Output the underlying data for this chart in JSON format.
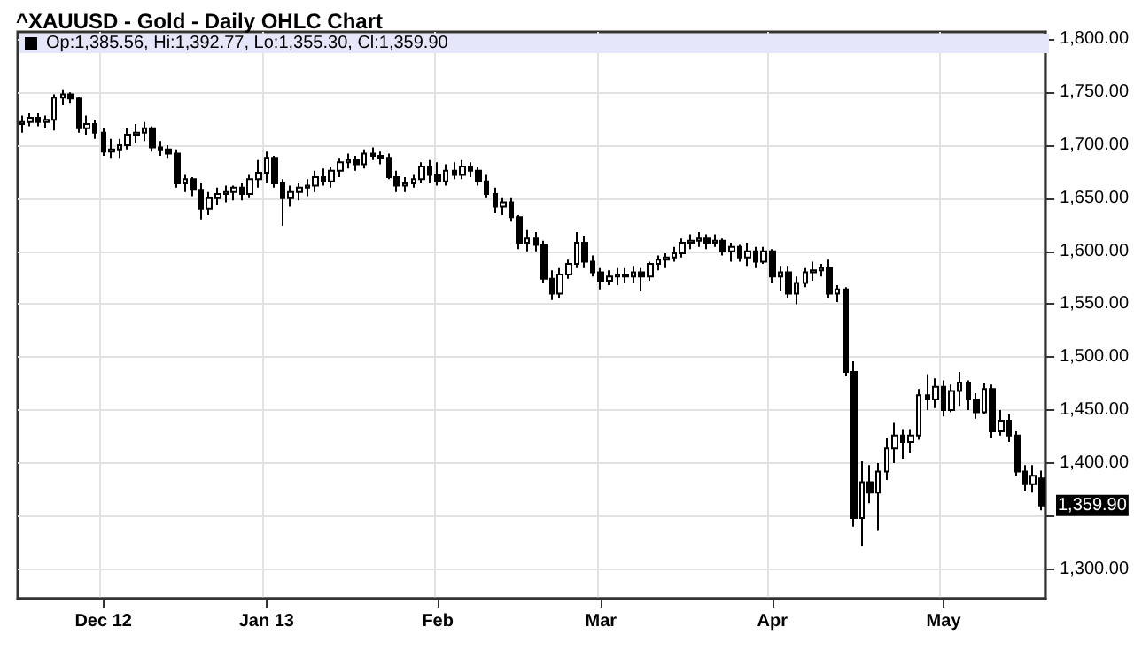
{
  "chart_data": {
    "type": "candlestick",
    "title": "^XAUUSD - Gold - Daily OHLC Chart",
    "color": "#000000",
    "grid": true,
    "annotations": [
      "Op:1,385.56, Hi:1,392.77, Lo:1,355.30, Cl:1,359.90",
      "1,359.90"
    ],
    "ylim": [
      1272,
      1807
    ],
    "yticks": [
      {
        "value": 1300,
        "label": "1,300.00"
      },
      {
        "value": 1350,
        "label": null
      },
      {
        "value": 1400,
        "label": "1,400.00"
      },
      {
        "value": 1450,
        "label": "1,450.00"
      },
      {
        "value": 1500,
        "label": "1,500.00"
      },
      {
        "value": 1550,
        "label": "1,550.00"
      },
      {
        "value": 1600,
        "label": "1,600.00"
      },
      {
        "value": 1650,
        "label": "1,650.00"
      },
      {
        "value": 1700,
        "label": "1,700.00"
      },
      {
        "value": 1750,
        "label": "1,750.00"
      },
      {
        "value": 1800,
        "label": "1,800.00"
      }
    ],
    "categories": [
      null,
      null,
      null,
      null,
      null,
      null,
      null,
      null,
      null,
      null,
      "Dec 12",
      null,
      null,
      null,
      null,
      null,
      null,
      null,
      null,
      null,
      null,
      null,
      null,
      null,
      null,
      null,
      null,
      null,
      null,
      null,
      "Jan 13",
      null,
      null,
      null,
      null,
      null,
      null,
      null,
      null,
      null,
      null,
      null,
      null,
      null,
      null,
      null,
      null,
      null,
      null,
      null,
      null,
      "Feb",
      null,
      null,
      null,
      null,
      null,
      null,
      null,
      null,
      null,
      null,
      null,
      null,
      null,
      null,
      null,
      null,
      null,
      null,
      null,
      "Mar",
      null,
      null,
      null,
      null,
      null,
      null,
      null,
      null,
      null,
      null,
      null,
      null,
      null,
      null,
      null,
      null,
      null,
      null,
      null,
      null,
      "Apr",
      null,
      null,
      null,
      null,
      null,
      null,
      null,
      null,
      null,
      null,
      null,
      null,
      null,
      null,
      null,
      null,
      null,
      null,
      null,
      null,
      "May",
      null,
      null,
      null,
      null,
      null,
      null,
      null,
      null,
      null,
      null,
      null,
      null
    ],
    "ohlc": [
      [
        1720,
        1728,
        1712,
        1722
      ],
      [
        1722,
        1730,
        1718,
        1726
      ],
      [
        1726,
        1730,
        1718,
        1722
      ],
      [
        1722,
        1728,
        1716,
        1724
      ],
      [
        1724,
        1748,
        1714,
        1745
      ],
      [
        1745,
        1752,
        1738,
        1748
      ],
      [
        1748,
        1750,
        1740,
        1744
      ],
      [
        1744,
        1746,
        1712,
        1716
      ],
      [
        1716,
        1728,
        1710,
        1720
      ],
      [
        1720,
        1724,
        1706,
        1712
      ],
      [
        1712,
        1716,
        1690,
        1694
      ],
      [
        1694,
        1706,
        1688,
        1696
      ],
      [
        1696,
        1706,
        1688,
        1700
      ],
      [
        1700,
        1716,
        1696,
        1710
      ],
      [
        1710,
        1720,
        1702,
        1712
      ],
      [
        1712,
        1722,
        1704,
        1716
      ],
      [
        1716,
        1718,
        1694,
        1698
      ],
      [
        1698,
        1704,
        1690,
        1696
      ],
      [
        1696,
        1700,
        1688,
        1692
      ],
      [
        1692,
        1696,
        1660,
        1664
      ],
      [
        1664,
        1672,
        1656,
        1668
      ],
      [
        1668,
        1670,
        1652,
        1658
      ],
      [
        1658,
        1664,
        1630,
        1640
      ],
      [
        1640,
        1656,
        1634,
        1650
      ],
      [
        1650,
        1660,
        1644,
        1654
      ],
      [
        1654,
        1662,
        1646,
        1656
      ],
      [
        1656,
        1662,
        1648,
        1660
      ],
      [
        1660,
        1664,
        1648,
        1654
      ],
      [
        1654,
        1672,
        1650,
        1668
      ],
      [
        1668,
        1686,
        1660,
        1674
      ],
      [
        1674,
        1694,
        1664,
        1688
      ],
      [
        1688,
        1690,
        1660,
        1664
      ],
      [
        1664,
        1668,
        1624,
        1650
      ],
      [
        1650,
        1662,
        1642,
        1656
      ],
      [
        1656,
        1664,
        1648,
        1660
      ],
      [
        1660,
        1668,
        1652,
        1662
      ],
      [
        1662,
        1676,
        1656,
        1670
      ],
      [
        1670,
        1678,
        1662,
        1666
      ],
      [
        1666,
        1680,
        1660,
        1676
      ],
      [
        1676,
        1688,
        1670,
        1684
      ],
      [
        1684,
        1692,
        1678,
        1686
      ],
      [
        1686,
        1690,
        1676,
        1682
      ],
      [
        1682,
        1696,
        1678,
        1692
      ],
      [
        1692,
        1698,
        1686,
        1690
      ],
      [
        1690,
        1694,
        1682,
        1688
      ],
      [
        1688,
        1692,
        1668,
        1670
      ],
      [
        1670,
        1676,
        1656,
        1662
      ],
      [
        1662,
        1670,
        1656,
        1664
      ],
      [
        1664,
        1672,
        1660,
        1668
      ],
      [
        1668,
        1684,
        1664,
        1680
      ],
      [
        1680,
        1686,
        1664,
        1672
      ],
      [
        1672,
        1684,
        1662,
        1666
      ],
      [
        1666,
        1682,
        1662,
        1676
      ],
      [
        1676,
        1684,
        1668,
        1672
      ],
      [
        1672,
        1686,
        1668,
        1680
      ],
      [
        1680,
        1684,
        1670,
        1676
      ],
      [
        1676,
        1680,
        1662,
        1666
      ],
      [
        1666,
        1672,
        1650,
        1654
      ],
      [
        1654,
        1660,
        1636,
        1642
      ],
      [
        1642,
        1650,
        1634,
        1646
      ],
      [
        1646,
        1650,
        1628,
        1632
      ],
      [
        1632,
        1634,
        1602,
        1608
      ],
      [
        1608,
        1620,
        1600,
        1612
      ],
      [
        1612,
        1618,
        1600,
        1606
      ],
      [
        1606,
        1610,
        1570,
        1574
      ],
      [
        1574,
        1582,
        1554,
        1560
      ],
      [
        1560,
        1584,
        1556,
        1578
      ],
      [
        1578,
        1592,
        1574,
        1588
      ],
      [
        1588,
        1618,
        1584,
        1608
      ],
      [
        1608,
        1614,
        1584,
        1590
      ],
      [
        1590,
        1596,
        1576,
        1580
      ],
      [
        1580,
        1584,
        1564,
        1572
      ],
      [
        1572,
        1582,
        1568,
        1576
      ],
      [
        1576,
        1584,
        1568,
        1578
      ],
      [
        1578,
        1584,
        1570,
        1576
      ],
      [
        1576,
        1586,
        1570,
        1580
      ],
      [
        1580,
        1584,
        1562,
        1576
      ],
      [
        1576,
        1590,
        1572,
        1588
      ],
      [
        1588,
        1596,
        1582,
        1592
      ],
      [
        1592,
        1598,
        1584,
        1594
      ],
      [
        1594,
        1604,
        1590,
        1598
      ],
      [
        1598,
        1612,
        1594,
        1608
      ],
      [
        1608,
        1616,
        1602,
        1610
      ],
      [
        1610,
        1618,
        1604,
        1612
      ],
      [
        1612,
        1616,
        1602,
        1608
      ],
      [
        1608,
        1616,
        1604,
        1610
      ],
      [
        1610,
        1612,
        1596,
        1600
      ],
      [
        1600,
        1608,
        1590,
        1604
      ],
      [
        1604,
        1606,
        1590,
        1594
      ],
      [
        1594,
        1608,
        1586,
        1600
      ],
      [
        1600,
        1604,
        1584,
        1590
      ],
      [
        1590,
        1604,
        1588,
        1600
      ],
      [
        1600,
        1602,
        1570,
        1576
      ],
      [
        1576,
        1586,
        1562,
        1580
      ],
      [
        1580,
        1586,
        1556,
        1560
      ],
      [
        1560,
        1576,
        1550,
        1570
      ],
      [
        1570,
        1584,
        1566,
        1580
      ],
      [
        1580,
        1590,
        1572,
        1582
      ],
      [
        1582,
        1588,
        1576,
        1584
      ],
      [
        1584,
        1592,
        1556,
        1560
      ],
      [
        1560,
        1568,
        1552,
        1564
      ],
      [
        1564,
        1566,
        1482,
        1486
      ],
      [
        1486,
        1496,
        1340,
        1348
      ],
      [
        1348,
        1402,
        1322,
        1382
      ],
      [
        1382,
        1398,
        1362,
        1372
      ],
      [
        1372,
        1400,
        1336,
        1392
      ],
      [
        1392,
        1424,
        1384,
        1414
      ],
      [
        1414,
        1438,
        1400,
        1426
      ],
      [
        1426,
        1432,
        1404,
        1420
      ],
      [
        1420,
        1432,
        1410,
        1426
      ],
      [
        1426,
        1470,
        1422,
        1464
      ],
      [
        1464,
        1484,
        1450,
        1460
      ],
      [
        1460,
        1480,
        1452,
        1472
      ],
      [
        1472,
        1478,
        1444,
        1450
      ],
      [
        1450,
        1474,
        1448,
        1468
      ],
      [
        1468,
        1486,
        1454,
        1476
      ],
      [
        1476,
        1478,
        1450,
        1460
      ],
      [
        1460,
        1466,
        1442,
        1448
      ],
      [
        1448,
        1476,
        1446,
        1470
      ],
      [
        1470,
        1474,
        1424,
        1430
      ],
      [
        1430,
        1450,
        1426,
        1440
      ],
      [
        1440,
        1446,
        1420,
        1426
      ],
      [
        1426,
        1430,
        1388,
        1392
      ],
      [
        1392,
        1398,
        1374,
        1380
      ],
      [
        1380,
        1398,
        1372,
        1388
      ],
      [
        1385.56,
        1392.77,
        1355.3,
        1359.9
      ]
    ]
  }
}
